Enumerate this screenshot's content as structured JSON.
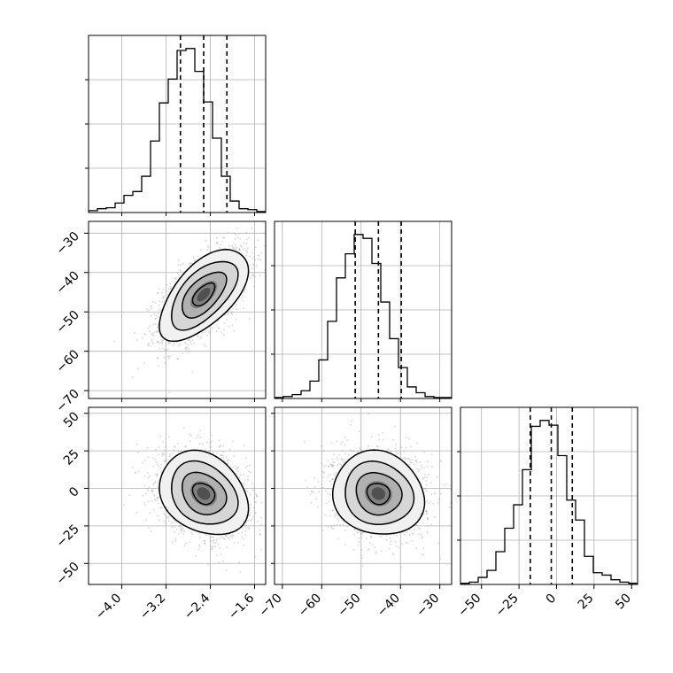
{
  "chart_data": {
    "type": "corner",
    "grid": true,
    "params": [
      {
        "ticks": [
          -4.0,
          -3.2,
          -2.4,
          -1.6
        ],
        "tick_labels": [
          "−4.0",
          "−3.2",
          "−2.4",
          "−1.6"
        ],
        "range": [
          -4.6,
          -1.4
        ],
        "quantiles": [
          -2.94,
          -2.52,
          -2.1
        ],
        "mean": -2.52,
        "sd": 0.4
      },
      {
        "ticks": [
          -70,
          -60,
          -50,
          -40,
          -30
        ],
        "tick_labels": [
          "−70",
          "−60",
          "−50",
          "−40",
          "−30"
        ],
        "range": [
          -72,
          -27
        ],
        "quantiles": [
          -51.5,
          -45.6,
          -39.8
        ],
        "mean": -45.6,
        "sd": 5.8
      },
      {
        "ticks": [
          -50,
          -25,
          0,
          25,
          50
        ],
        "tick_labels": [
          "−50",
          "−25",
          "0",
          "25",
          "50"
        ],
        "range": [
          -64,
          54
        ],
        "quantiles": [
          -17.5,
          -3.5,
          10.5
        ],
        "mean": -3.5,
        "sd": 14
      }
    ],
    "histograms": [
      {
        "param": 0,
        "bin_range": [
          -4.6,
          -1.4
        ],
        "counts": [
          2,
          4,
          5,
          10,
          18,
          22,
          38,
          75,
          115,
          140,
          170,
          172,
          148,
          116,
          78,
          38,
          12,
          4,
          3,
          1
        ]
      },
      {
        "param": 1,
        "bin_range": [
          -72,
          -27
        ],
        "counts": [
          1,
          2,
          4,
          8,
          18,
          40,
          80,
          125,
          150,
          170,
          166,
          140,
          100,
          62,
          32,
          12,
          6,
          2,
          1,
          1
        ]
      },
      {
        "param": 2,
        "bin_range": [
          -64,
          54
        ],
        "counts": [
          1,
          2,
          6,
          12,
          28,
          48,
          68,
          98,
          135,
          140,
          136,
          110,
          72,
          55,
          24,
          10,
          8,
          4,
          2,
          1
        ]
      }
    ],
    "correlations": {
      "1-0": 0.6,
      "2-0": -0.25,
      "2-1": -0.1
    },
    "contour_levels_sigma": [
      0.5,
      1.0,
      1.5,
      2.0
    ]
  }
}
